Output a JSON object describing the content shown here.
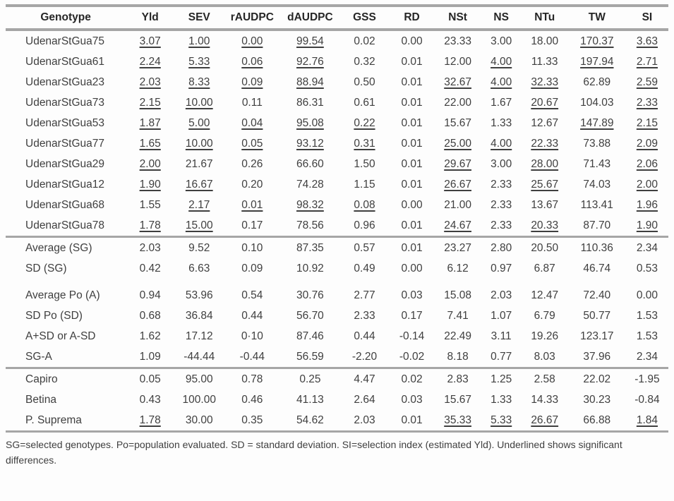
{
  "colors": {
    "rule": "#a6a6a6",
    "text": "#3f3f3f",
    "header_text": "#262626",
    "background": "#fdfdfd"
  },
  "columns": [
    "Genotype",
    "Yld",
    "SEV",
    "rAUDPC",
    "dAUDPC",
    "GSS",
    "RD",
    "NSt",
    "NS",
    "NTu",
    "TW",
    "SI"
  ],
  "sections": [
    {
      "name": "selected-genotypes",
      "rows": [
        {
          "label": "UdenarStGua75",
          "values": [
            "3.07",
            "1.00",
            "0.00",
            "99.54",
            "0.02",
            "0.00",
            "23.33",
            "3.00",
            "18.00",
            "170.37",
            "3.63"
          ],
          "underlined": [
            1,
            1,
            1,
            1,
            0,
            0,
            0,
            0,
            0,
            1,
            1
          ]
        },
        {
          "label": "UdenarStGua61",
          "values": [
            "2.24",
            "5.33",
            "0.06",
            "92.76",
            "0.32",
            "0.01",
            "12.00",
            "4.00",
            "11.33",
            "197.94",
            "2.71"
          ],
          "underlined": [
            1,
            1,
            1,
            1,
            0,
            0,
            0,
            1,
            0,
            1,
            1
          ]
        },
        {
          "label": "UdenarStGua23",
          "values": [
            "2.03",
            "8.33",
            "0.09",
            "88.94",
            "0.50",
            "0.01",
            "32.67",
            "4.00",
            "32.33",
            "62.89",
            "2.59"
          ],
          "underlined": [
            1,
            1,
            1,
            1,
            0,
            0,
            1,
            1,
            1,
            0,
            1
          ]
        },
        {
          "label": "UdenarStGua73",
          "values": [
            "2.15",
            "10.00",
            "0.11",
            "86.31",
            "0.61",
            "0.01",
            "22.00",
            "1.67",
            "20.67",
            "104.03",
            "2.33"
          ],
          "underlined": [
            1,
            1,
            0,
            0,
            0,
            0,
            0,
            0,
            1,
            0,
            1
          ]
        },
        {
          "label": "UdenarStGua53",
          "values": [
            "1.87",
            "5.00",
            "0.04",
            "95.08",
            "0.22",
            "0.01",
            "15.67",
            "1.33",
            "12.67",
            "147.89",
            "2.15"
          ],
          "underlined": [
            1,
            1,
            1,
            1,
            1,
            0,
            0,
            0,
            0,
            1,
            1
          ]
        },
        {
          "label": "UdenarStGua77",
          "values": [
            "1.65",
            "10.00",
            "0.05",
            "93.12",
            "0.31",
            "0.01",
            "25.00",
            "4.00",
            "22.33",
            "73.88",
            "2.09"
          ],
          "underlined": [
            1,
            1,
            1,
            1,
            1,
            0,
            1,
            1,
            1,
            0,
            1
          ]
        },
        {
          "label": "UdenarStGua29",
          "values": [
            "2.00",
            "21.67",
            "0.26",
            "66.60",
            "1.50",
            "0.01",
            "29.67",
            "3.00",
            "28.00",
            "71.43",
            "2.06"
          ],
          "underlined": [
            1,
            0,
            0,
            0,
            0,
            0,
            1,
            0,
            1,
            0,
            1
          ]
        },
        {
          "label": "UdenarStGua12",
          "values": [
            "1.90",
            "16.67",
            "0.20",
            "74.28",
            "1.15",
            "0.01",
            "26.67",
            "2.33",
            "25.67",
            "74.03",
            "2.00"
          ],
          "underlined": [
            1,
            1,
            0,
            0,
            0,
            0,
            1,
            0,
            1,
            0,
            1
          ]
        },
        {
          "label": "UdenarStGua68",
          "values": [
            "1.55",
            "2.17",
            "0.01",
            "98.32",
            "0.08",
            "0.00",
            "21.00",
            "2.33",
            "13.67",
            "113.41",
            "1.96"
          ],
          "underlined": [
            0,
            1,
            1,
            1,
            1,
            0,
            0,
            0,
            0,
            0,
            1
          ]
        },
        {
          "label": "UdenarStGua78",
          "values": [
            "1.78",
            "15.00",
            "0.17",
            "78.56",
            "0.96",
            "0.01",
            "24.67",
            "2.33",
            "20.33",
            "87.70",
            "1.90"
          ],
          "underlined": [
            1,
            1,
            0,
            0,
            0,
            0,
            1,
            0,
            1,
            0,
            1
          ]
        }
      ]
    },
    {
      "name": "statistics",
      "rows": [
        {
          "label": "Average (SG)",
          "values": [
            "2.03",
            "9.52",
            "0.10",
            "87.35",
            "0.57",
            "0.01",
            "23.27",
            "2.80",
            "20.50",
            "110.36",
            "2.34"
          ]
        },
        {
          "label": "SD (SG)",
          "values": [
            "0.42",
            "6.63",
            "0.09",
            "10.92",
            "0.49",
            "0.00",
            "6.12",
            "0.97",
            "6.87",
            "46.74",
            "0.53"
          ]
        },
        {
          "label": "Average Po (A)",
          "values": [
            "0.94",
            "53.96",
            "0.54",
            "30.76",
            "2.77",
            "0.03",
            "15.08",
            "2.03",
            "12.47",
            "72.40",
            "0.00"
          ],
          "spacer_before": true
        },
        {
          "label": "SD Po (SD)",
          "values": [
            "0.68",
            "36.84",
            "0.44",
            "56.70",
            "2.33",
            "0.17",
            "7.41",
            "1.07",
            "6.79",
            "50.77",
            "1.53"
          ]
        },
        {
          "label": "A+SD or A-SD",
          "values": [
            "1.62",
            "17.12",
            "0·10",
            "87.46",
            "0.44",
            "-0.14",
            "22.49",
            "3.11",
            "19.26",
            "123.17",
            "1.53"
          ]
        },
        {
          "label": "SG-A",
          "values": [
            "1.09",
            "-44.44",
            "-0.44",
            "56.59",
            "-2.20",
            "-0.02",
            "8.18",
            "0.77",
            "8.03",
            "37.96",
            "2.34"
          ]
        }
      ]
    },
    {
      "name": "check-varieties",
      "rows": [
        {
          "label": "Capiro",
          "values": [
            "0.05",
            "95.00",
            "0.78",
            "0.25",
            "4.47",
            "0.02",
            "2.83",
            "1.25",
            "2.58",
            "22.02",
            "-1.95"
          ]
        },
        {
          "label": "Betina",
          "values": [
            "0.43",
            "100.00",
            "0.46",
            "41.13",
            "2.64",
            "0.03",
            "15.67",
            "1.33",
            "14.33",
            "30.23",
            "-0.84"
          ]
        },
        {
          "label": "P. Suprema",
          "values": [
            "1.78",
            "30.00",
            "0.35",
            "54.62",
            "2.03",
            "0.01",
            "35.33",
            "5.33",
            "26.67",
            "66.88",
            "1.84"
          ],
          "underlined": [
            1,
            0,
            0,
            0,
            0,
            0,
            1,
            1,
            1,
            0,
            1
          ]
        }
      ]
    }
  ],
  "footnote": "SG=selected genotypes. Po=population evaluated. SD = standard deviation. SI=selection index (estimated Yld). Underlined shows significant differences."
}
